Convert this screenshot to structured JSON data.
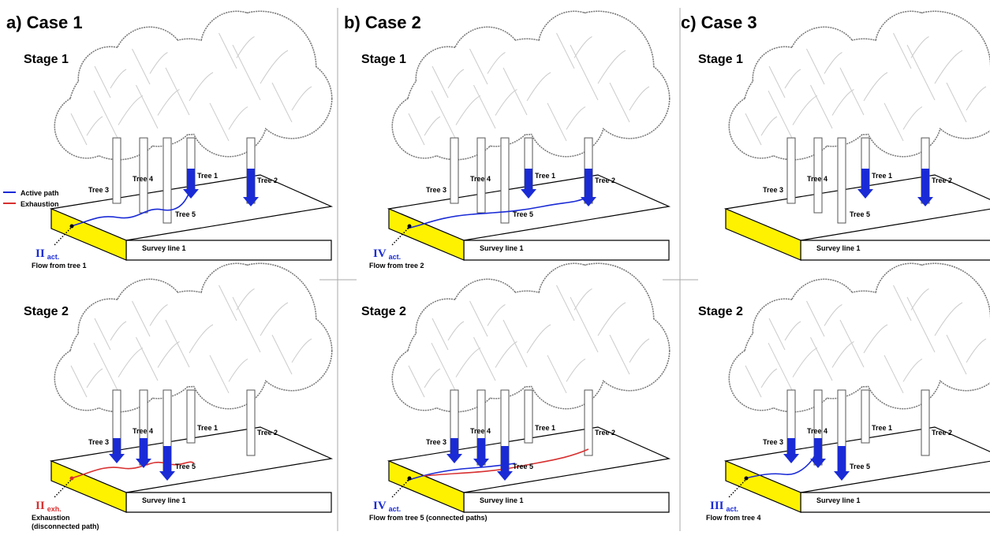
{
  "legend": {
    "active": "Active path",
    "exhaustion": "Exhaustion"
  },
  "cases": [
    {
      "title": "a) Case 1",
      "stages": [
        {
          "label": "Stage 1",
          "trees": [
            "Tree 1",
            "Tree 2",
            "Tree 3",
            "Tree 4",
            "Tree 5"
          ],
          "survey_line": "Survey line 1",
          "path": {
            "numeral": "II",
            "status": "act.",
            "caption": [
              "Flow from tree 1"
            ]
          }
        },
        {
          "label": "Stage 2",
          "trees": [
            "Tree 1",
            "Tree 2",
            "Tree 3",
            "Tree 4",
            "Tree 5"
          ],
          "survey_line": "Survey line 1",
          "path": {
            "numeral": "II",
            "status": "exh.",
            "caption": [
              "Exhaustion",
              "(disconnected path)"
            ]
          }
        }
      ]
    },
    {
      "title": "b) Case 2",
      "stages": [
        {
          "label": "Stage 1",
          "trees": [
            "Tree 1",
            "Tree 2",
            "Tree 3",
            "Tree 4",
            "Tree 5"
          ],
          "survey_line": "Survey line 1",
          "path": {
            "numeral": "IV",
            "status": "act.",
            "caption": [
              "Flow from tree 2"
            ]
          }
        },
        {
          "label": "Stage 2",
          "trees": [
            "Tree 1",
            "Tree 2",
            "Tree 3",
            "Tree 4",
            "Tree 5"
          ],
          "survey_line": "Survey line 1",
          "path": {
            "numeral": "IV",
            "status": "act.",
            "caption": [
              "Flow from tree 5 (connected paths)"
            ]
          }
        }
      ]
    },
    {
      "title": "c) Case 3",
      "stages": [
        {
          "label": "Stage 1",
          "trees": [
            "Tree 1",
            "Tree 2",
            "Tree 3",
            "Tree 4",
            "Tree 5"
          ],
          "survey_line": "Survey line 1"
        },
        {
          "label": "Stage 2",
          "trees": [
            "Tree 1",
            "Tree 2",
            "Tree 3",
            "Tree 4",
            "Tree 5"
          ],
          "survey_line": "Survey line 1",
          "path": {
            "numeral": "III",
            "status": "act.",
            "caption": [
              "Flow from tree 4"
            ]
          }
        }
      ]
    }
  ]
}
